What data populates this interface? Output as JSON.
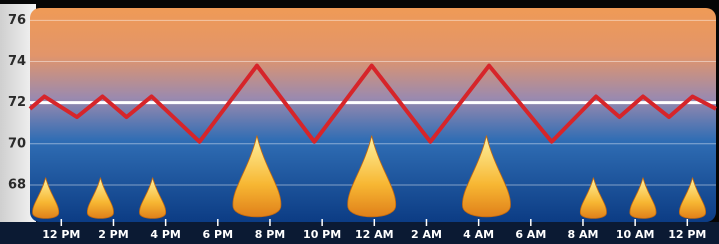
{
  "chart_data": {
    "type": "line",
    "x": [
      -1.2,
      -0.65,
      0.6,
      1.58,
      2.5,
      3.46,
      5.3,
      7.5,
      9.7,
      11.9,
      14.15,
      16.4,
      18.8,
      20.5,
      21.4,
      22.3,
      23.3,
      24.2,
      25.1
    ],
    "series": [
      {
        "color": "#d6252a",
        "values": [
          71.7,
          72.3,
          71.3,
          72.3,
          71.3,
          72.3,
          70.1,
          73.8,
          70.1,
          73.8,
          70.1,
          73.8,
          70.1,
          72.3,
          71.3,
          72.3,
          71.3,
          72.3,
          71.7
        ]
      }
    ],
    "setpoint": 72,
    "heat_on": [
      -0.6,
      1.5,
      3.5,
      7.5,
      11.9,
      16.3,
      20.4,
      22.3,
      24.2
    ],
    "xlim": [
      -1.2,
      25.1
    ],
    "ylim": [
      66.2,
      76.6
    ],
    "yticks": [
      68,
      70,
      72,
      74,
      76
    ],
    "xticks": [
      {
        "value": 0,
        "label": "12 PM"
      },
      {
        "value": 2,
        "label": "2 PM"
      },
      {
        "value": 4,
        "label": "4 PM"
      },
      {
        "value": 6,
        "label": "6 PM"
      },
      {
        "value": 8,
        "label": "8 PM"
      },
      {
        "value": 10,
        "label": "10 PM"
      },
      {
        "value": 12,
        "label": "12 AM"
      },
      {
        "value": 14,
        "label": "2 AM"
      },
      {
        "value": 16,
        "label": "4 AM"
      },
      {
        "value": 18,
        "label": "6 AM"
      },
      {
        "value": 20,
        "label": "8 AM"
      },
      {
        "value": 22,
        "label": "10 AM"
      },
      {
        "value": 24,
        "label": "12 PM"
      }
    ],
    "grid": true
  }
}
